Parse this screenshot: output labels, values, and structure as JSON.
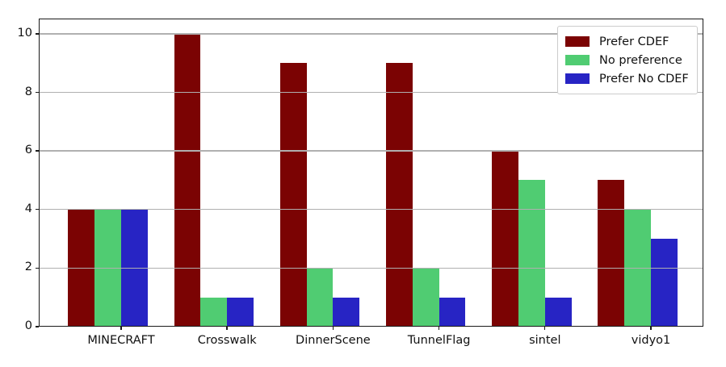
{
  "chart_data": {
    "type": "bar",
    "title": "",
    "xlabel": "",
    "ylabel": "",
    "categories": [
      "MINECRAFT",
      "Crosswalk",
      "DinnerScene",
      "TunnelFlag",
      "sintel",
      "vidyo1"
    ],
    "series": [
      {
        "name": "Prefer CDEF",
        "color": "#7b0303",
        "values": [
          4,
          10,
          9,
          9,
          6,
          5
        ]
      },
      {
        "name": "No preference",
        "color": "#50cc72",
        "values": [
          4,
          1,
          2,
          2,
          5,
          4
        ]
      },
      {
        "name": "Prefer No CDEF",
        "color": "#2724c4",
        "values": [
          4,
          1,
          1,
          1,
          1,
          3
        ]
      }
    ],
    "yticks": [
      0,
      2,
      4,
      6,
      8,
      10
    ],
    "ylim": [
      0,
      10.52
    ],
    "grid": "horizontal",
    "legend_position": "upper right",
    "colors": {
      "grid": "#b0b0b0",
      "spine": "#1a1a1a",
      "background": "#ffffff",
      "text": "#111111"
    }
  }
}
